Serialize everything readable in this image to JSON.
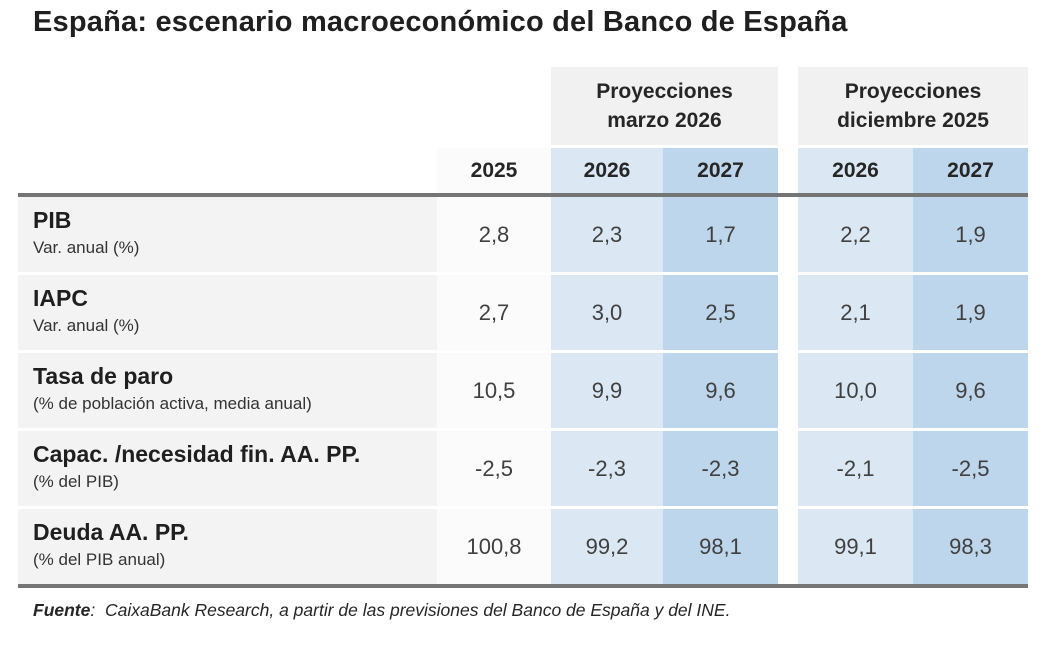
{
  "title": "España: escenario macroeconómico del Banco de España",
  "header": {
    "group1_line1": "Proyecciones",
    "group1_line2": "marzo 2026",
    "group2_line1": "Proyecciones",
    "group2_line2": "diciembre 2025",
    "year_2025": "2025",
    "year_g1_2026": "2026",
    "year_g1_2027": "2027",
    "year_g2_2026": "2026",
    "year_g2_2027": "2027"
  },
  "rows": [
    {
      "indicator": "PIB",
      "unit": "Var. anual (%)",
      "v": [
        "2,8",
        "2,3",
        "1,7",
        "2,2",
        "1,9"
      ]
    },
    {
      "indicator": "IAPC",
      "unit": "Var. anual (%)",
      "v": [
        "2,7",
        "3,0",
        "2,5",
        "2,1",
        "1,9"
      ]
    },
    {
      "indicator": "Tasa de paro",
      "unit": "(% de población activa, media anual)",
      "v": [
        "10,5",
        "9,9",
        "9,6",
        "10,0",
        "9,6"
      ]
    },
    {
      "indicator": "Capac. /necesidad fin. AA. PP.",
      "unit": "(% del PIB)",
      "v": [
        "-2,5",
        "-2,3",
        "-2,3",
        "-2,1",
        "-2,5"
      ]
    },
    {
      "indicator": "Deuda AA. PP.",
      "unit": "(% del PIB anual)",
      "v": [
        "100,8",
        "99,2",
        "98,1",
        "99,1",
        "98,3"
      ]
    }
  ],
  "source": {
    "label": "Fuente",
    "text": ":  CaixaBank Research, a partir de las previsiones del Banco de España y del INE."
  },
  "colors": {
    "col_2026": "#dbe8f4",
    "col_2027": "#bdd6eb",
    "col_2025": "#fbfbfb",
    "group_header_bg": "#f2f1f1",
    "label_col_bg": "#f4f3f3",
    "rule": "#757575"
  },
  "chart_data": {
    "type": "table",
    "title": "España: escenario macroeconómico del Banco de España",
    "column_groups": [
      {
        "title": "Proyecciones marzo 2026",
        "columns": [
          "2026",
          "2027"
        ]
      },
      {
        "title": "Proyecciones diciembre 2025",
        "columns": [
          "2026",
          "2027"
        ]
      }
    ],
    "columns": [
      "2025",
      "2026 (Proyecciones marzo 2026)",
      "2027 (Proyecciones marzo 2026)",
      "2026 (Proyecciones diciembre 2025)",
      "2027 (Proyecciones diciembre 2025)"
    ],
    "rows": [
      {
        "label": "PIB",
        "unit": "Var. anual (%)",
        "values": [
          2.8,
          2.3,
          1.7,
          2.2,
          1.9
        ]
      },
      {
        "label": "IAPC",
        "unit": "Var. anual (%)",
        "values": [
          2.7,
          3.0,
          2.5,
          2.1,
          1.9
        ]
      },
      {
        "label": "Tasa de paro",
        "unit": "(% de población activa, media anual)",
        "values": [
          10.5,
          9.9,
          9.6,
          10.0,
          9.6
        ]
      },
      {
        "label": "Capac. /necesidad fin. AA. PP.",
        "unit": "(% del PIB)",
        "values": [
          -2.5,
          -2.3,
          -2.3,
          -2.1,
          -2.5
        ]
      },
      {
        "label": "Deuda AA. PP.",
        "unit": "(% del PIB anual)",
        "values": [
          100.8,
          99.2,
          98.1,
          99.1,
          98.3
        ]
      }
    ],
    "source": "Fuente: CaixaBank Research, a partir de las previsiones del Banco de España y del INE."
  }
}
